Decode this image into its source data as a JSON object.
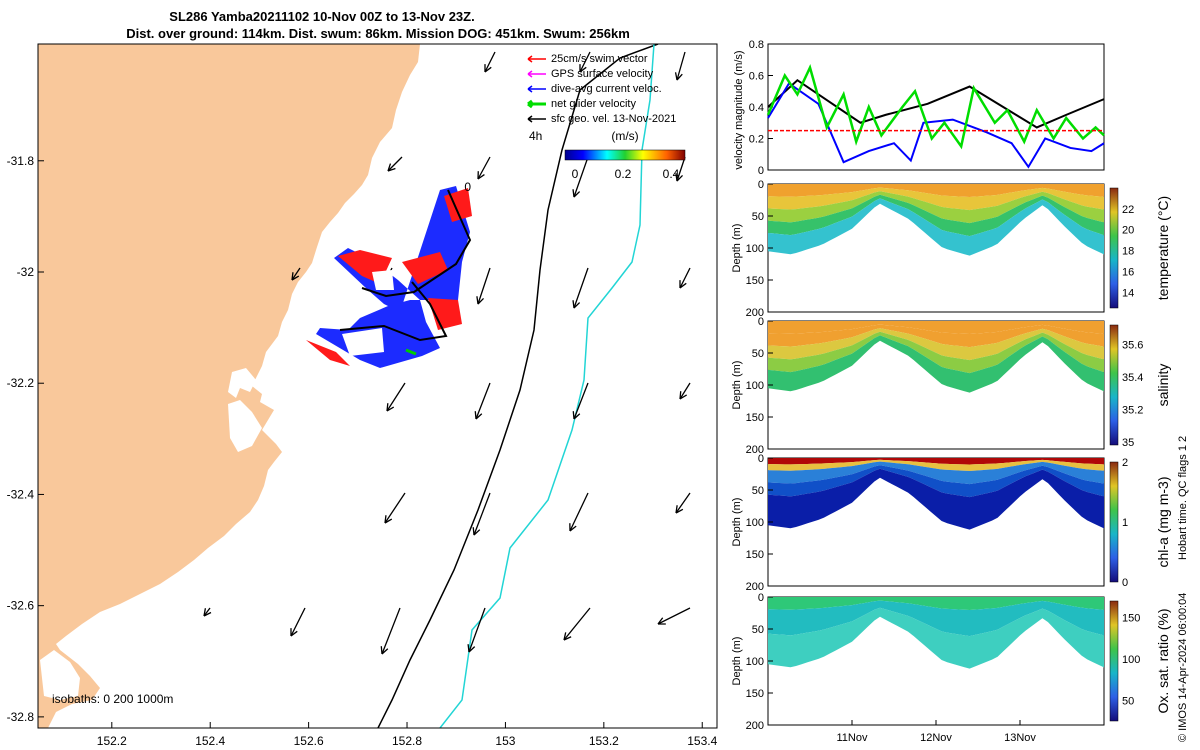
{
  "title_line1": "SL286 Yamba20211102 10-Nov 00Z to 13-Nov 23Z.",
  "title_line2": "Dist. over ground: 114km. Dist. swum: 86km. Mission DOG: 451km. Swum: 256km",
  "map": {
    "land_color": "#f9c89b",
    "xticks": [
      "152.2",
      "152.4",
      "152.6",
      "152.8",
      "153",
      "153.2",
      "153.4"
    ],
    "yticks": [
      "-31.8",
      "-32",
      "-32.2",
      "-32.4",
      "-32.6",
      "-32.8"
    ],
    "xlim": [
      152.05,
      153.43
    ],
    "ylim": [
      -32.82,
      -31.59
    ],
    "isobaths_text": "isobaths: 0   200  1000m",
    "time_marker_4h": "4h",
    "time_marker_0": "0",
    "legend": [
      {
        "label": "25cm/s swim vector",
        "color": "#ff0000"
      },
      {
        "label": "GPS surface velocity",
        "color": "#ff00ff"
      },
      {
        "label": "dive-avg current veloc.",
        "color": "#0000ff"
      },
      {
        "label": "net glider velocity",
        "color": "#00dd00"
      },
      {
        "label": "sfc geo. vel. 13-Nov-2021",
        "color": "#000000"
      }
    ],
    "colorbar_title": "(m/s)",
    "colorbar_ticks": [
      "0",
      "0.2",
      "0.4"
    ]
  },
  "chart_data": [
    {
      "type": "line",
      "ylabel": "velocity magnitude (m/s)",
      "yticks": [
        "0",
        "0.2",
        "0.4",
        "0.6",
        "0.8"
      ],
      "ylim": [
        0,
        0.8
      ],
      "xlim": [
        0,
        4
      ],
      "series": [
        {
          "color": "#000000",
          "x": [
            0,
            0.35,
            1.1,
            1.4,
            1.9,
            2.4,
            2.8,
            3.2,
            3.55,
            4
          ],
          "y": [
            0.4,
            0.57,
            0.3,
            0.35,
            0.42,
            0.53,
            0.4,
            0.27,
            0.35,
            0.45
          ]
        },
        {
          "color": "#0000ff",
          "x": [
            0,
            0.25,
            0.6,
            0.9,
            1.2,
            1.5,
            1.7,
            1.85,
            2.2,
            2.6,
            2.9,
            3.1,
            3.3,
            3.6,
            3.85,
            4
          ],
          "y": [
            0.33,
            0.55,
            0.42,
            0.05,
            0.12,
            0.17,
            0.06,
            0.3,
            0.32,
            0.24,
            0.17,
            0.02,
            0.2,
            0.14,
            0.12,
            0.17
          ]
        },
        {
          "color": "#00dd00",
          "x": [
            0,
            0.2,
            0.35,
            0.5,
            0.7,
            0.9,
            1.05,
            1.2,
            1.35,
            1.6,
            1.75,
            1.95,
            2.1,
            2.3,
            2.45,
            2.7,
            2.85,
            3.05,
            3.2,
            3.4,
            3.55,
            3.75,
            3.9,
            4
          ],
          "y": [
            0.35,
            0.6,
            0.48,
            0.65,
            0.27,
            0.48,
            0.18,
            0.4,
            0.22,
            0.4,
            0.5,
            0.2,
            0.3,
            0.15,
            0.52,
            0.3,
            0.38,
            0.18,
            0.38,
            0.2,
            0.33,
            0.2,
            0.27,
            0.22
          ]
        },
        {
          "color": "#ff0000",
          "x": [
            0,
            4
          ],
          "y": [
            0.25,
            0.25
          ]
        }
      ]
    },
    {
      "type": "heatmap",
      "ylabel": "Depth (m)",
      "cbar_label": "temperature (°C)",
      "yticks": [
        "0",
        "50",
        "100",
        "150",
        "200"
      ],
      "cbar_ticks": [
        "14",
        "16",
        "18",
        "20",
        "22"
      ],
      "cbar_range": [
        12.5,
        24
      ],
      "profile": "temp"
    },
    {
      "type": "heatmap",
      "ylabel": "Depth (m)",
      "cbar_label": "salinity",
      "yticks": [
        "0",
        "50",
        "100",
        "150",
        "200"
      ],
      "cbar_ticks": [
        "35",
        "35.2",
        "35.4",
        "35.6"
      ],
      "cbar_range": [
        34.98,
        35.72
      ],
      "profile": "sal"
    },
    {
      "type": "heatmap",
      "ylabel": "Depth (m)",
      "cbar_label": "chl-a (mg m-3)",
      "yticks": [
        "0",
        "50",
        "100",
        "150",
        "200"
      ],
      "cbar_ticks": [
        "0",
        "1",
        "2"
      ],
      "cbar_range": [
        0,
        2
      ],
      "profile": "chl"
    },
    {
      "type": "heatmap",
      "ylabel": "Depth (m)",
      "cbar_label": "Ox. sat. ratio (%)",
      "yticks": [
        "0",
        "50",
        "100",
        "150",
        "200"
      ],
      "cbar_ticks": [
        "50",
        "100",
        "150"
      ],
      "cbar_range": [
        25,
        170
      ],
      "profile": "oxy"
    }
  ],
  "time_axis": {
    "ticks": [
      "11Nov",
      "12Nov",
      "13Nov"
    ]
  },
  "footer_text": "Hobart time. QC flags 1  2",
  "credit_text": "© IMOS 14-Apr-2024 06:00:04"
}
